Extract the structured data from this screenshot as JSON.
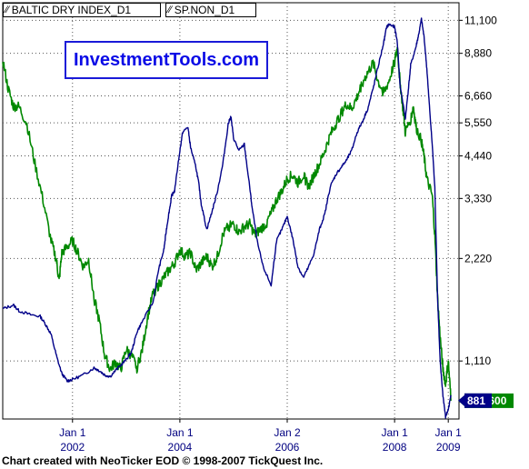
{
  "legend": {
    "icon": "line-chart-icon",
    "items": [
      "BALTIC DRY INDEX_D1",
      "SP.NON_D1"
    ]
  },
  "brand": "InvestmentTools.com",
  "footer": "Chart created with NeoTicker EOD © 1998-2007 TickQuest Inc.",
  "colors": {
    "bdi": "#000088",
    "sp": "#008800",
    "grid": "#555555",
    "accent_text": "#000080"
  },
  "chart_data": {
    "type": "line",
    "x_ticks": [
      {
        "top": "Jan 1",
        "bottom": "2002",
        "x": 2002.0
      },
      {
        "top": "Jan 1",
        "bottom": "2004",
        "x": 2004.0
      },
      {
        "top": "Jan 2",
        "bottom": "2006",
        "x": 2006.0
      },
      {
        "top": "Jan 1",
        "bottom": "2008",
        "x": 2008.0
      },
      {
        "top": "Jan 1",
        "bottom": "2009",
        "x": 2009.0
      }
    ],
    "xlim": [
      2000.7,
      2009.2
    ],
    "y_axis": {
      "scale": "log",
      "ticks": [
        "11,100",
        "8,880",
        "6,660",
        "5,550",
        "4,440",
        "3,330",
        "2,220",
        "1,110"
      ],
      "ylim": [
        750,
        12500
      ]
    },
    "last_values": [
      {
        "label": "848.600",
        "series": "SP.NON_D1",
        "value": 848.6
      },
      {
        "label": "881",
        "series": "BALTIC DRY INDEX_D1",
        "value": 881
      }
    ],
    "series": [
      {
        "name": "BALTIC DRY INDEX_D1",
        "x": [
          2000.7,
          2000.9,
          2001.0,
          2001.2,
          2001.4,
          2001.5,
          2001.6,
          2001.7,
          2001.8,
          2001.9,
          2002.0,
          2002.2,
          2002.4,
          2002.5,
          2002.6,
          2002.7,
          2002.85,
          2003.0,
          2003.1,
          2003.2,
          2003.3,
          2003.5,
          2003.6,
          2003.7,
          2003.75,
          2003.8,
          2003.85,
          2003.9,
          2004.0,
          2004.05,
          2004.15,
          2004.2,
          2004.3,
          2004.35,
          2004.4,
          2004.5,
          2004.6,
          2004.7,
          2004.8,
          2004.9,
          2004.95,
          2005.0,
          2005.1,
          2005.2,
          2005.3,
          2005.35,
          2005.45,
          2005.55,
          2005.7,
          2005.8,
          2005.9,
          2006.0,
          2006.1,
          2006.2,
          2006.3,
          2006.4,
          2006.5,
          2006.6,
          2006.7,
          2006.8,
          2006.9,
          2007.0,
          2007.1,
          2007.2,
          2007.3,
          2007.4,
          2007.5,
          2007.6,
          2007.7,
          2007.8,
          2007.85,
          2007.9,
          2008.0,
          2008.05,
          2008.1,
          2008.2,
          2008.25,
          2008.3,
          2008.4,
          2008.45,
          2008.5,
          2008.55,
          2008.6,
          2008.65,
          2008.7,
          2008.75,
          2008.8,
          2008.85,
          2008.9,
          2008.95,
          2009.0,
          2009.05
        ],
        "values": [
          1580,
          1620,
          1560,
          1520,
          1500,
          1420,
          1330,
          1150,
          1020,
          970,
          980,
          1010,
          1060,
          1040,
          1010,
          1000,
          1060,
          1120,
          1180,
          1350,
          1450,
          1650,
          2050,
          2350,
          2700,
          3050,
          3400,
          3500,
          4600,
          5200,
          5400,
          4700,
          4100,
          3700,
          3200,
          2700,
          3050,
          3500,
          4200,
          5500,
          5800,
          5000,
          4600,
          4800,
          3600,
          3100,
          2450,
          2100,
          1850,
          2500,
          2700,
          2950,
          2550,
          2100,
          1950,
          2100,
          2300,
          2700,
          3000,
          3600,
          3900,
          4100,
          4300,
          4600,
          5200,
          5600,
          6100,
          7000,
          8200,
          9600,
          10600,
          10800,
          10600,
          9600,
          7200,
          5700,
          6800,
          8200,
          9300,
          10100,
          11200,
          9900,
          8000,
          6200,
          4800,
          3600,
          1700,
          1100,
          880,
          760,
          800,
          881
        ]
      },
      {
        "name": "SP.NON_D1",
        "x": [
          2000.7,
          2000.8,
          2000.9,
          2001.0,
          2001.15,
          2001.3,
          2001.45,
          2001.6,
          2001.7,
          2001.75,
          2001.8,
          2001.9,
          2002.0,
          2002.1,
          2002.2,
          2002.3,
          2002.4,
          2002.5,
          2002.6,
          2002.7,
          2002.8,
          2002.9,
          2003.0,
          2003.1,
          2003.2,
          2003.3,
          2003.4,
          2003.5,
          2003.6,
          2003.7,
          2003.8,
          2003.9,
          2004.0,
          2004.1,
          2004.2,
          2004.3,
          2004.4,
          2004.5,
          2004.6,
          2004.7,
          2004.8,
          2004.9,
          2005.0,
          2005.1,
          2005.2,
          2005.3,
          2005.4,
          2005.5,
          2005.6,
          2005.7,
          2005.8,
          2005.9,
          2006.0,
          2006.1,
          2006.2,
          2006.3,
          2006.4,
          2006.5,
          2006.6,
          2006.7,
          2006.8,
          2006.9,
          2007.0,
          2007.1,
          2007.2,
          2007.3,
          2007.4,
          2007.5,
          2007.6,
          2007.7,
          2007.8,
          2007.9,
          2008.0,
          2008.05,
          2008.1,
          2008.15,
          2008.2,
          2008.3,
          2008.35,
          2008.4,
          2008.5,
          2008.55,
          2008.6,
          2008.7,
          2008.75,
          2008.8,
          2008.85,
          2008.9,
          2008.95,
          2009.0,
          2009.05
        ],
        "values": [
          8500,
          7000,
          6200,
          6200,
          5500,
          4200,
          3300,
          2500,
          2200,
          1900,
          2300,
          2400,
          2500,
          2300,
          2100,
          2200,
          1700,
          1450,
          1150,
          1050,
          1100,
          1050,
          1200,
          1150,
          1060,
          1200,
          1500,
          1750,
          1850,
          1950,
          2050,
          2150,
          2350,
          2250,
          2300,
          2050,
          2150,
          2250,
          2100,
          2250,
          2600,
          2750,
          2800,
          2650,
          2750,
          2800,
          2600,
          2700,
          2800,
          3000,
          3300,
          3500,
          3800,
          3900,
          3700,
          3900,
          3600,
          3900,
          4200,
          4600,
          5100,
          5500,
          5900,
          6300,
          6100,
          6600,
          7300,
          7800,
          8300,
          7300,
          6800,
          7400,
          8400,
          9200,
          7400,
          6200,
          5200,
          5700,
          6200,
          5400,
          4900,
          4400,
          3800,
          3400,
          2600,
          1700,
          1300,
          1050,
          950,
          1110,
          848.6
        ]
      }
    ]
  }
}
